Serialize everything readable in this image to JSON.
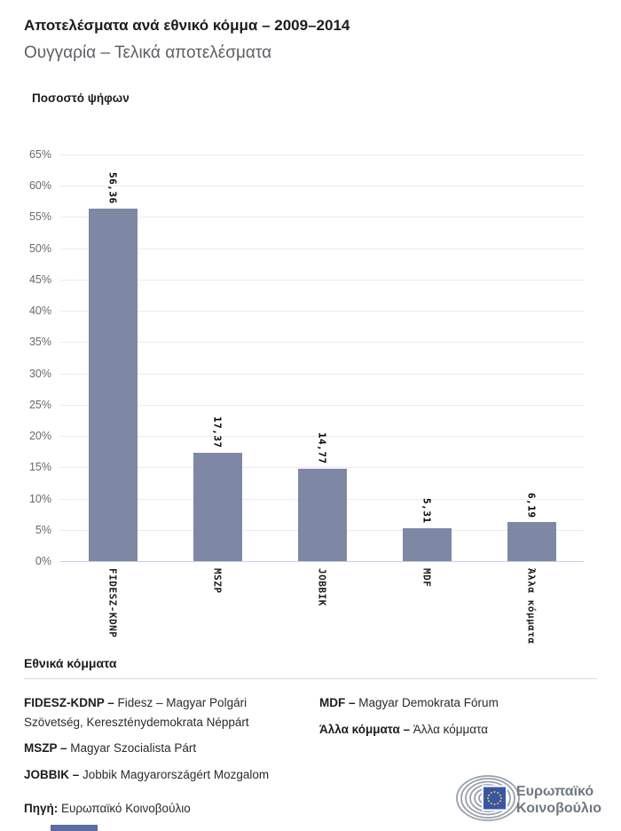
{
  "header": {
    "title": "Αποτελέσματα ανά εθνικό κόμμα – 2009–2014",
    "subtitle": "Ουγγαρία – Τελικά αποτελέσματα"
  },
  "chart_data": {
    "type": "bar",
    "title": "Ποσοστό ψήφων",
    "categories": [
      "FIDESZ-KDNP",
      "MSZP",
      "JOBBIK",
      "MDF",
      "Άλλα κόμματα"
    ],
    "values": [
      56.36,
      17.37,
      14.77,
      5.31,
      6.19
    ],
    "value_labels": [
      "56,36",
      "17,37",
      "14,77",
      "5,31",
      "6,19"
    ],
    "ylabel": "Ποσοστό ψήφων",
    "xlabel": "",
    "ylim": [
      0,
      65
    ],
    "ytick_step": 5,
    "ytick_suffix": "%",
    "grid": true,
    "legend_position": "none",
    "bar_color": "#7E88A5",
    "grid_color": "#ebebee",
    "baseline_color": "#c7cfe7",
    "tick_label_color": "#67696e"
  },
  "legend": {
    "heading": "Εθνικά κόμματα",
    "columns": [
      {
        "entries": [
          {
            "code": "FIDESZ-KDNP – ",
            "name": "Fidesz – Magyar Polgári Szövetség, Kereszténydemokrata Néppárt"
          },
          {
            "code": "MSZP – ",
            "name": "Magyar Szocialista Párt"
          },
          {
            "code": "JOBBIK – ",
            "name": "Jobbik Magyarországért Mozgalom"
          }
        ]
      },
      {
        "entries": [
          {
            "code": "MDF – ",
            "name": "Magyar Demokrata Fórum"
          },
          {
            "code": "Άλλα κόμματα – ",
            "name": "Άλλα κόμματα"
          }
        ]
      }
    ]
  },
  "footer": {
    "source_label": "Πηγή:",
    "source_value": " Ευρωπαϊκό Κοινοβούλιο",
    "logo_text_line1": "Ευρωπαϊκό",
    "logo_text_line2": "Κοινοβούλιο"
  },
  "colors": {
    "bar": "#7E88A5",
    "eu_flag_blue": "#3757a6",
    "eu_star_yellow": "#f7d117",
    "logo_gray": "#98a0aa",
    "logo_text_gray": "#6f7781",
    "title_text": "#1d1d1b",
    "subtitle_text": "#5c6065"
  }
}
